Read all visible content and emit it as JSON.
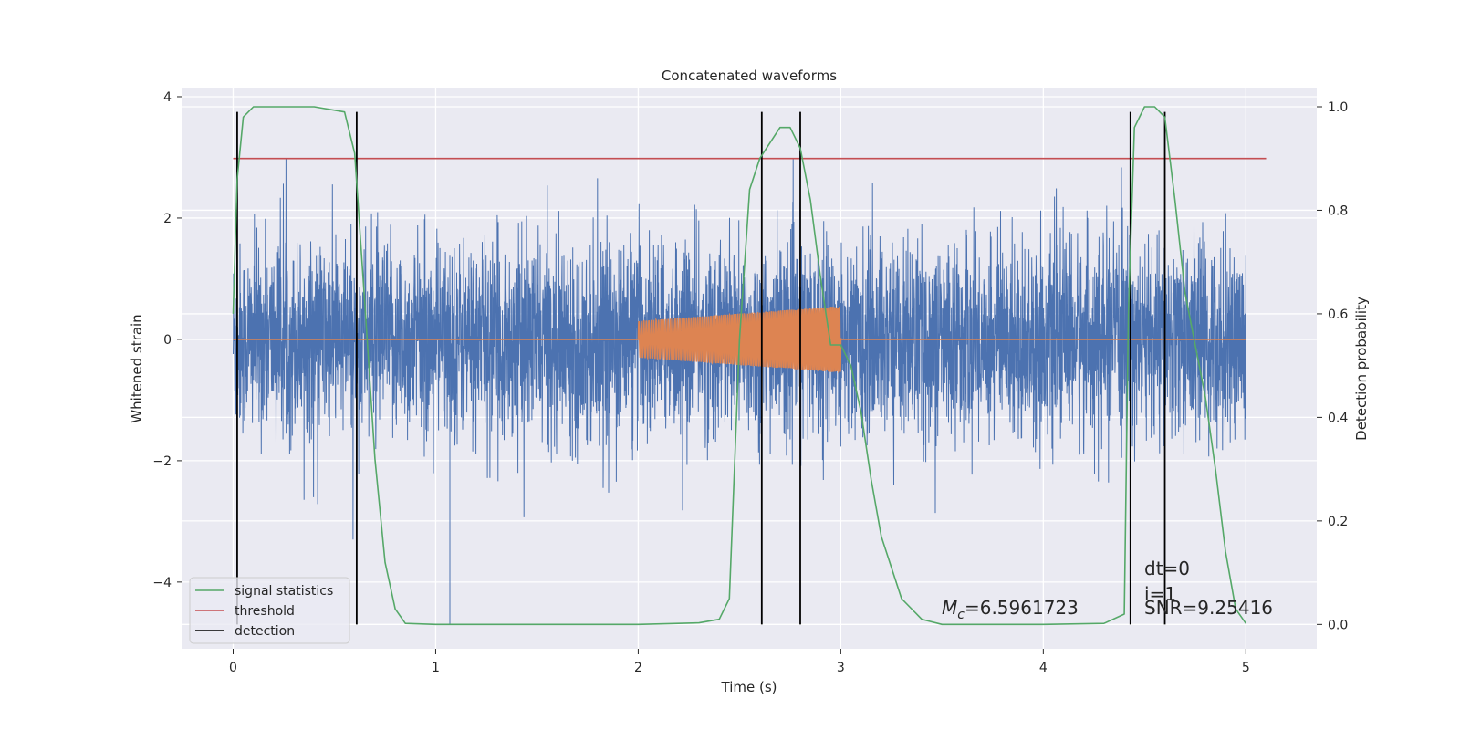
{
  "chart_data": {
    "type": "line",
    "title": "Concatenated waveforms",
    "xlabel": "Time (s)",
    "ylabel": "Whitened strain",
    "y2label": "Detection probability",
    "xlim": [
      -0.25,
      5.35
    ],
    "ylim": [
      -5.1,
      4.15
    ],
    "y2lim": [
      -0.047,
      1.037
    ],
    "xticks": [
      0,
      1,
      2,
      3,
      4,
      5
    ],
    "xtick_labels": [
      "0",
      "1",
      "2",
      "3",
      "4",
      "5"
    ],
    "yticks": [
      4,
      2,
      0,
      -2,
      -4
    ],
    "ytick_labels": [
      "4",
      "2",
      "0",
      "−2",
      "−4"
    ],
    "y2ticks": [
      1.0,
      0.8,
      0.6,
      0.4,
      0.2,
      0.0
    ],
    "y2tick_labels": [
      "1.0",
      "0.8",
      "0.6",
      "0.4",
      "0.2",
      "0.0"
    ],
    "grid": true,
    "legend_position": "lower-left",
    "colors": {
      "background": "#eaeaf2",
      "grid": "#ffffff",
      "strain": "#4c72b0",
      "injection": "#dd8452",
      "signal_statistics": "#55a868",
      "threshold": "#c44e52",
      "detection": "#000000"
    },
    "series": [
      {
        "name": "whitened strain",
        "axis": "left",
        "x_range": [
          0,
          5
        ],
        "note_values": "noise sampled ~1/ms, amplitude approx ±1.5 typical, peaks to ±3.7"
      },
      {
        "name": "injected waveform",
        "axis": "left",
        "segment": [
          2.0,
          3.0
        ],
        "amplitude_start": 0.3,
        "amplitude_end": 0.55
      },
      {
        "name": "signal statistics",
        "axis": "right",
        "x": [
          0.0,
          0.02,
          0.05,
          0.1,
          0.2,
          0.4,
          0.55,
          0.6,
          0.65,
          0.7,
          0.75,
          0.8,
          0.85,
          1.0,
          2.0,
          2.3,
          2.4,
          2.45,
          2.5,
          2.55,
          2.6,
          2.65,
          2.7,
          2.75,
          2.8,
          2.85,
          2.9,
          2.95,
          3.0,
          3.05,
          3.1,
          3.15,
          3.2,
          3.3,
          3.4,
          3.5,
          4.0,
          4.3,
          4.4,
          4.42,
          4.45,
          4.5,
          4.55,
          4.6,
          4.65,
          4.7,
          4.75,
          4.8,
          4.85,
          4.9,
          4.95,
          5.0
        ],
        "y": [
          0.6,
          0.86,
          0.98,
          1.0,
          1.0,
          1.0,
          0.99,
          0.91,
          0.62,
          0.32,
          0.12,
          0.03,
          0.002,
          0.0,
          0.0,
          0.003,
          0.01,
          0.05,
          0.55,
          0.84,
          0.9,
          0.93,
          0.96,
          0.96,
          0.92,
          0.82,
          0.67,
          0.54,
          0.54,
          0.5,
          0.41,
          0.28,
          0.17,
          0.05,
          0.01,
          0.0,
          0.0,
          0.002,
          0.02,
          0.6,
          0.96,
          1.0,
          1.0,
          0.98,
          0.82,
          0.64,
          0.54,
          0.44,
          0.3,
          0.14,
          0.03,
          0.002
        ]
      },
      {
        "name": "threshold",
        "axis": "right",
        "x": [
          0,
          5.1
        ],
        "y": [
          0.9,
          0.9
        ]
      },
      {
        "name": "detection",
        "axis": "left",
        "x": [
          0.02,
          0.61,
          2.61,
          2.8,
          4.43,
          4.6
        ],
        "y_range": [
          -4.7,
          3.75
        ]
      }
    ],
    "annotations": {
      "mc": "=6.5961723",
      "mc_symbol": "M",
      "mc_subscript": "c",
      "dt": "dt=0",
      "i": "i=1",
      "snr": "SNR=9.25416"
    },
    "legend": [
      "signal statistics",
      "threshold",
      "detection"
    ]
  }
}
